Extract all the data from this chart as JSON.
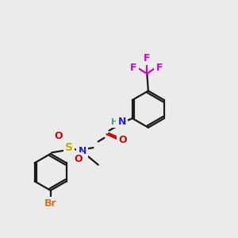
{
  "bg_color": "#ebebeb",
  "bond_color": "#1a1a1a",
  "colors": {
    "Br": "#cc7722",
    "S": "#ccaa00",
    "O": "#cc0000",
    "N": "#2222cc",
    "H": "#449999",
    "F": "#cc00cc",
    "C": "#1a1a1a"
  },
  "lw": 1.6,
  "r_ring": 30
}
